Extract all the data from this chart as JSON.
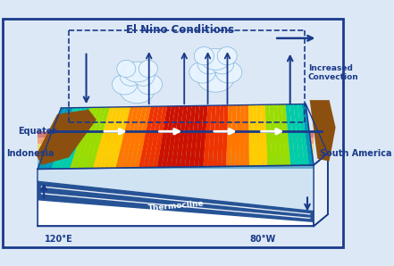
{
  "title": "El Nino Conditions",
  "label_increased_convection": "Increased\nConvection",
  "label_equator": "Equator",
  "label_indonesia": "Indonesia",
  "label_south_america": "South America",
  "label_thermocline": "Thermocline",
  "label_120e": "120°E",
  "label_80w": "80°W",
  "border_color": "#1a3a8a",
  "bg_color": "#dce8f5",
  "land_color": "#8B5010",
  "figsize": [
    4.41,
    2.98
  ],
  "dpi": 100
}
